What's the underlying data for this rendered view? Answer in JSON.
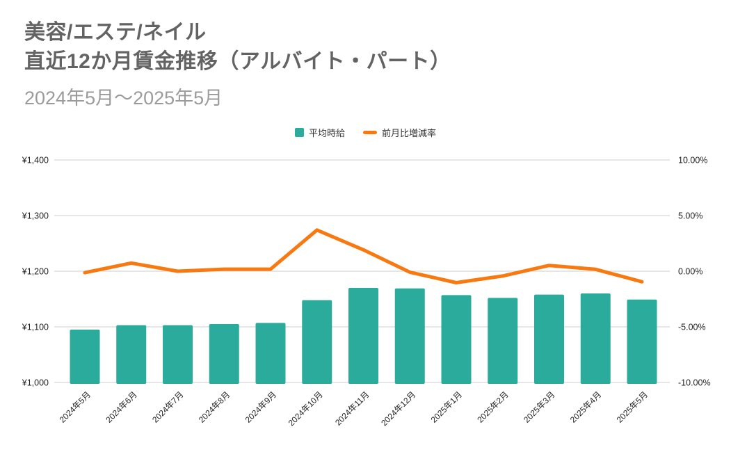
{
  "header": {
    "title_line1": "美容/エステ/ネイル",
    "title_line2": "直近12か月賃金推移（アルバイト・パート）",
    "subtitle": "2024年5月～2025年5月"
  },
  "legend": {
    "items": [
      {
        "label": "平均時給",
        "swatch": "square",
        "color": "#2aab9b"
      },
      {
        "label": "前月比増減率",
        "swatch": "line",
        "color": "#f8790f"
      }
    ]
  },
  "chart_data": {
    "type": "combo-bar-line",
    "title": "美容/エステ/ネイル 直近12か月賃金推移（アルバイト・パート）",
    "subtitle": "2024年5月～2025年5月",
    "categories": [
      "2024年5月",
      "2024年6月",
      "2024年7月",
      "2024年8月",
      "2024年9月",
      "2024年10月",
      "2024年11月",
      "2024年12月",
      "2025年1月",
      "2025年2月",
      "2025年3月",
      "2025年4月",
      "2025年5月"
    ],
    "series": [
      {
        "name": "平均時給",
        "type": "bar",
        "yaxis": "left",
        "unit": "¥",
        "color": "#2aab9b",
        "values": [
          1095,
          1103,
          1103,
          1105,
          1107,
          1148,
          1170,
          1169,
          1157,
          1152,
          1158,
          1160,
          1149
        ]
      },
      {
        "name": "前月比増減率",
        "type": "line",
        "yaxis": "right",
        "unit": "%",
        "color": "#f8790f",
        "values": [
          -0.13,
          0.73,
          0.0,
          0.18,
          0.18,
          3.7,
          1.92,
          -0.09,
          -1.03,
          -0.43,
          0.52,
          0.17,
          -0.95
        ]
      }
    ],
    "left_axis": {
      "min": 1000,
      "max": 1400,
      "tick_labels": [
        "¥1,400",
        "¥1,300",
        "¥1,200",
        "¥1,100",
        "¥1,000"
      ]
    },
    "right_axis": {
      "min": -10,
      "max": 10,
      "tick_labels": [
        "10.00%",
        "5.00%",
        "0.00%",
        "-5.00%",
        "-10.00%"
      ]
    },
    "grid": true,
    "gridline_color": "#d8d8d8",
    "legend_position": "top",
    "x_label_rotation": -45
  }
}
